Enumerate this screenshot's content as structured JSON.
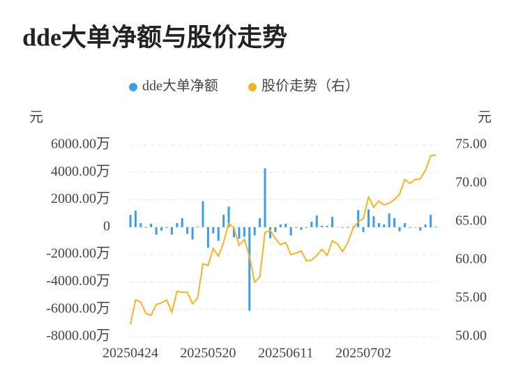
{
  "chart_data": {
    "type": "bar-line",
    "title": "dde大单净额与股价走势",
    "y_unit": "元",
    "y2_unit": "元",
    "categories": [
      "20250424",
      null,
      null,
      null,
      null,
      null,
      null,
      null,
      null,
      null,
      null,
      null,
      null,
      null,
      null,
      "20250520",
      null,
      null,
      null,
      null,
      null,
      null,
      null,
      null,
      null,
      null,
      null,
      null,
      null,
      null,
      "20250611",
      null,
      null,
      null,
      null,
      null,
      null,
      null,
      null,
      null,
      null,
      null,
      null,
      null,
      null,
      "20250702",
      null,
      null,
      null,
      null,
      null,
      null,
      null,
      null,
      null,
      null,
      null,
      null,
      null,
      null
    ],
    "series": [
      {
        "name": "dde大单净额",
        "type": "bar",
        "color": "#3a9de8",
        "values": [
          900,
          1200,
          300,
          -50,
          250,
          -550,
          -250,
          -50,
          -550,
          300,
          650,
          -500,
          -900,
          50,
          1900,
          -1500,
          -450,
          -1000,
          900,
          1500,
          -750,
          -850,
          -700,
          -6100,
          -600,
          650,
          4300,
          -800,
          -350,
          200,
          250,
          -600,
          -50,
          -200,
          -50,
          400,
          850,
          100,
          100,
          750,
          -20,
          -50,
          -50,
          50,
          1250,
          -350,
          1300,
          800,
          300,
          200,
          1000,
          650,
          -300,
          300,
          -50,
          -30,
          -250,
          200,
          900,
          50
        ]
      },
      {
        "name": "股价走势（右）",
        "type": "line",
        "axis": "y2",
        "color": "#f5b324",
        "values": [
          51.6,
          54.8,
          54.5,
          53.0,
          52.8,
          54.2,
          54.4,
          54.8,
          53.2,
          55.9,
          55.8,
          55.8,
          54.3,
          55.1,
          59.5,
          59.3,
          61.5,
          60.5,
          62.3,
          64.8,
          64.2,
          61.9,
          62.7,
          60.5,
          57.1,
          57.8,
          63.6,
          63.9,
          62.8,
          62.0,
          62.3,
          60.7,
          60.9,
          61.2,
          59.9,
          60.0,
          60.6,
          61.4,
          60.6,
          62.5,
          62.1,
          61.1,
          62.3,
          64.1,
          65.0,
          65.4,
          68.2,
          66.9,
          67.7,
          67.2,
          67.4,
          67.9,
          68.6,
          70.5,
          70.0,
          70.5,
          70.6,
          71.7,
          73.6,
          73.7
        ]
      }
    ],
    "ylim": [
      -8000,
      6000
    ],
    "yticks": [
      {
        "value": -8000,
        "label": "-8000.00万"
      },
      {
        "value": -6000,
        "label": "-6000.00万"
      },
      {
        "value": -4000,
        "label": "-4000.00万"
      },
      {
        "value": -2000,
        "label": "-2000.00万"
      },
      0,
      {
        "value": 2000,
        "label": "2000.00万"
      },
      {
        "value": 4000,
        "label": "4000.00万"
      },
      {
        "value": 6000,
        "label": "6000.00万"
      }
    ],
    "y2lim": [
      50,
      75
    ],
    "y2ticks": [
      {
        "value": 50,
        "label": "50.00"
      },
      {
        "value": 55,
        "label": "55.00"
      },
      {
        "value": 60,
        "label": "60.00"
      },
      {
        "value": 65,
        "label": "65.00"
      },
      {
        "value": 70,
        "label": "70.00"
      },
      {
        "value": 75,
        "label": "75.00"
      }
    ],
    "grid": true
  }
}
